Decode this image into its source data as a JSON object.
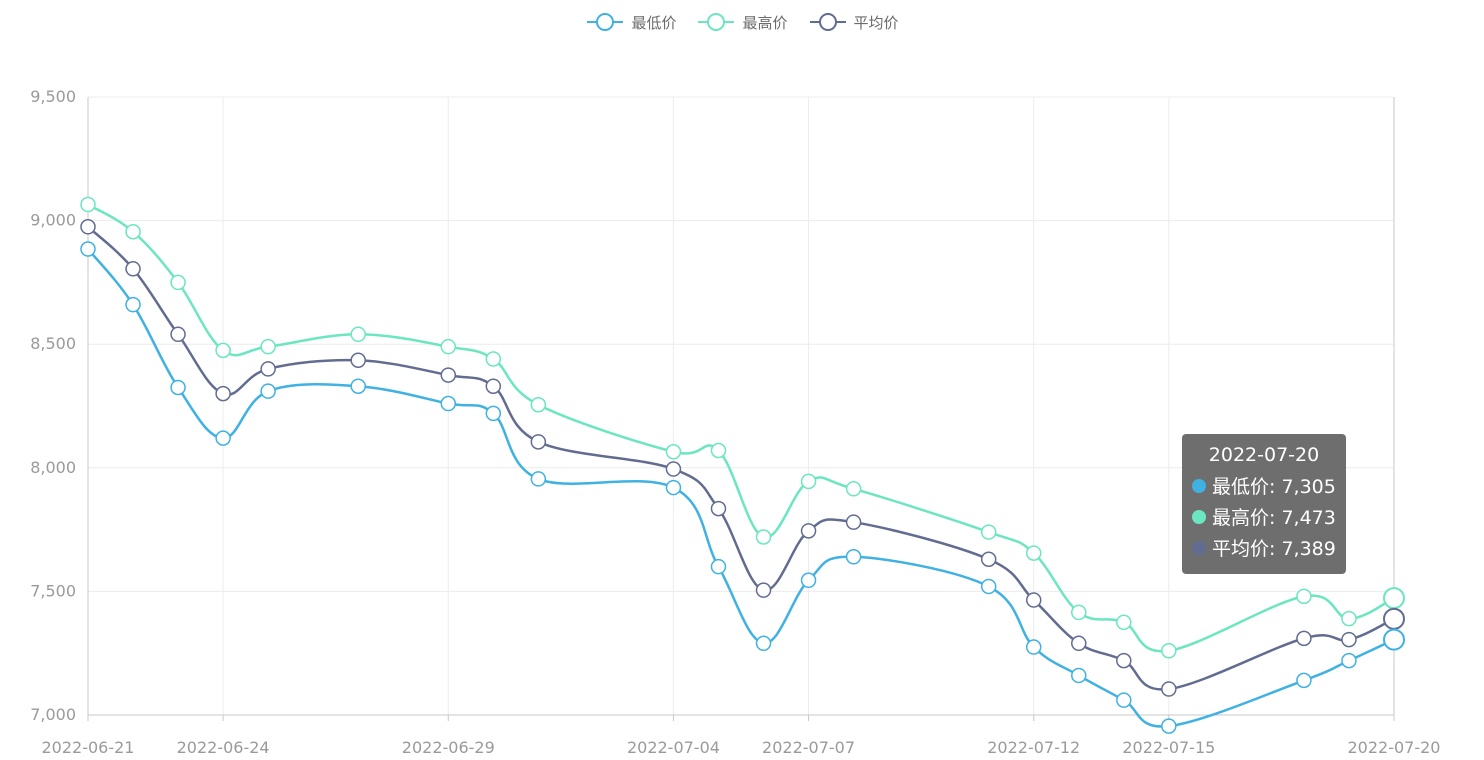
{
  "chart_data": {
    "type": "line",
    "smooth": true,
    "x": [
      "2022-06-21",
      "2022-06-22",
      "2022-06-23",
      "2022-06-24",
      "2022-06-25",
      "2022-06-27",
      "2022-06-29",
      "2022-06-30",
      "2022-07-01",
      "2022-07-04",
      "2022-07-05",
      "2022-07-06",
      "2022-07-07",
      "2022-07-08",
      "2022-07-11",
      "2022-07-12",
      "2022-07-13",
      "2022-07-14",
      "2022-07-15",
      "2022-07-18",
      "2022-07-19",
      "2022-07-20"
    ],
    "xtick_labels": [
      "2022-06-21",
      "2022-06-24",
      "2022-06-29",
      "2022-07-04",
      "2022-07-07",
      "2022-07-12",
      "2022-07-15",
      "2022-07-20"
    ],
    "ylim": [
      7000,
      9500
    ],
    "yticks": [
      7000,
      7500,
      8000,
      8500,
      9000,
      9500
    ],
    "ytick_labels": [
      "7,000",
      "7,500",
      "8,000",
      "8,500",
      "9,000",
      "9,500"
    ],
    "grid": true,
    "legend_position": "top-center",
    "series": [
      {
        "name": "最低价",
        "color": "#3fb1e3",
        "values": [
          8885,
          8660,
          8325,
          8120,
          8310,
          8330,
          8260,
          8220,
          7955,
          7920,
          7600,
          7290,
          7545,
          7640,
          7520,
          7275,
          7160,
          7060,
          6955,
          7140,
          7220,
          7305
        ]
      },
      {
        "name": "最高价",
        "color": "#6be6c1",
        "values": [
          9065,
          8955,
          8750,
          8475,
          8490,
          8540,
          8490,
          8440,
          8255,
          8065,
          8070,
          7720,
          7945,
          7915,
          7740,
          7655,
          7415,
          7375,
          7260,
          7480,
          7390,
          7473
        ]
      },
      {
        "name": "平均价",
        "color": "#626c91",
        "values": [
          8975,
          8805,
          8540,
          8300,
          8400,
          8435,
          8375,
          8330,
          8105,
          7995,
          7835,
          7505,
          7745,
          7780,
          7630,
          7465,
          7290,
          7220,
          7105,
          7310,
          7305,
          7389
        ]
      }
    ],
    "tooltip": {
      "title": "2022-07-20",
      "rows": [
        "最低价: 7,305",
        "最高价: 7,473",
        "平均价: 7,389"
      ],
      "colors": [
        "#3fb1e3",
        "#6be6c1",
        "#626c91"
      ]
    }
  }
}
